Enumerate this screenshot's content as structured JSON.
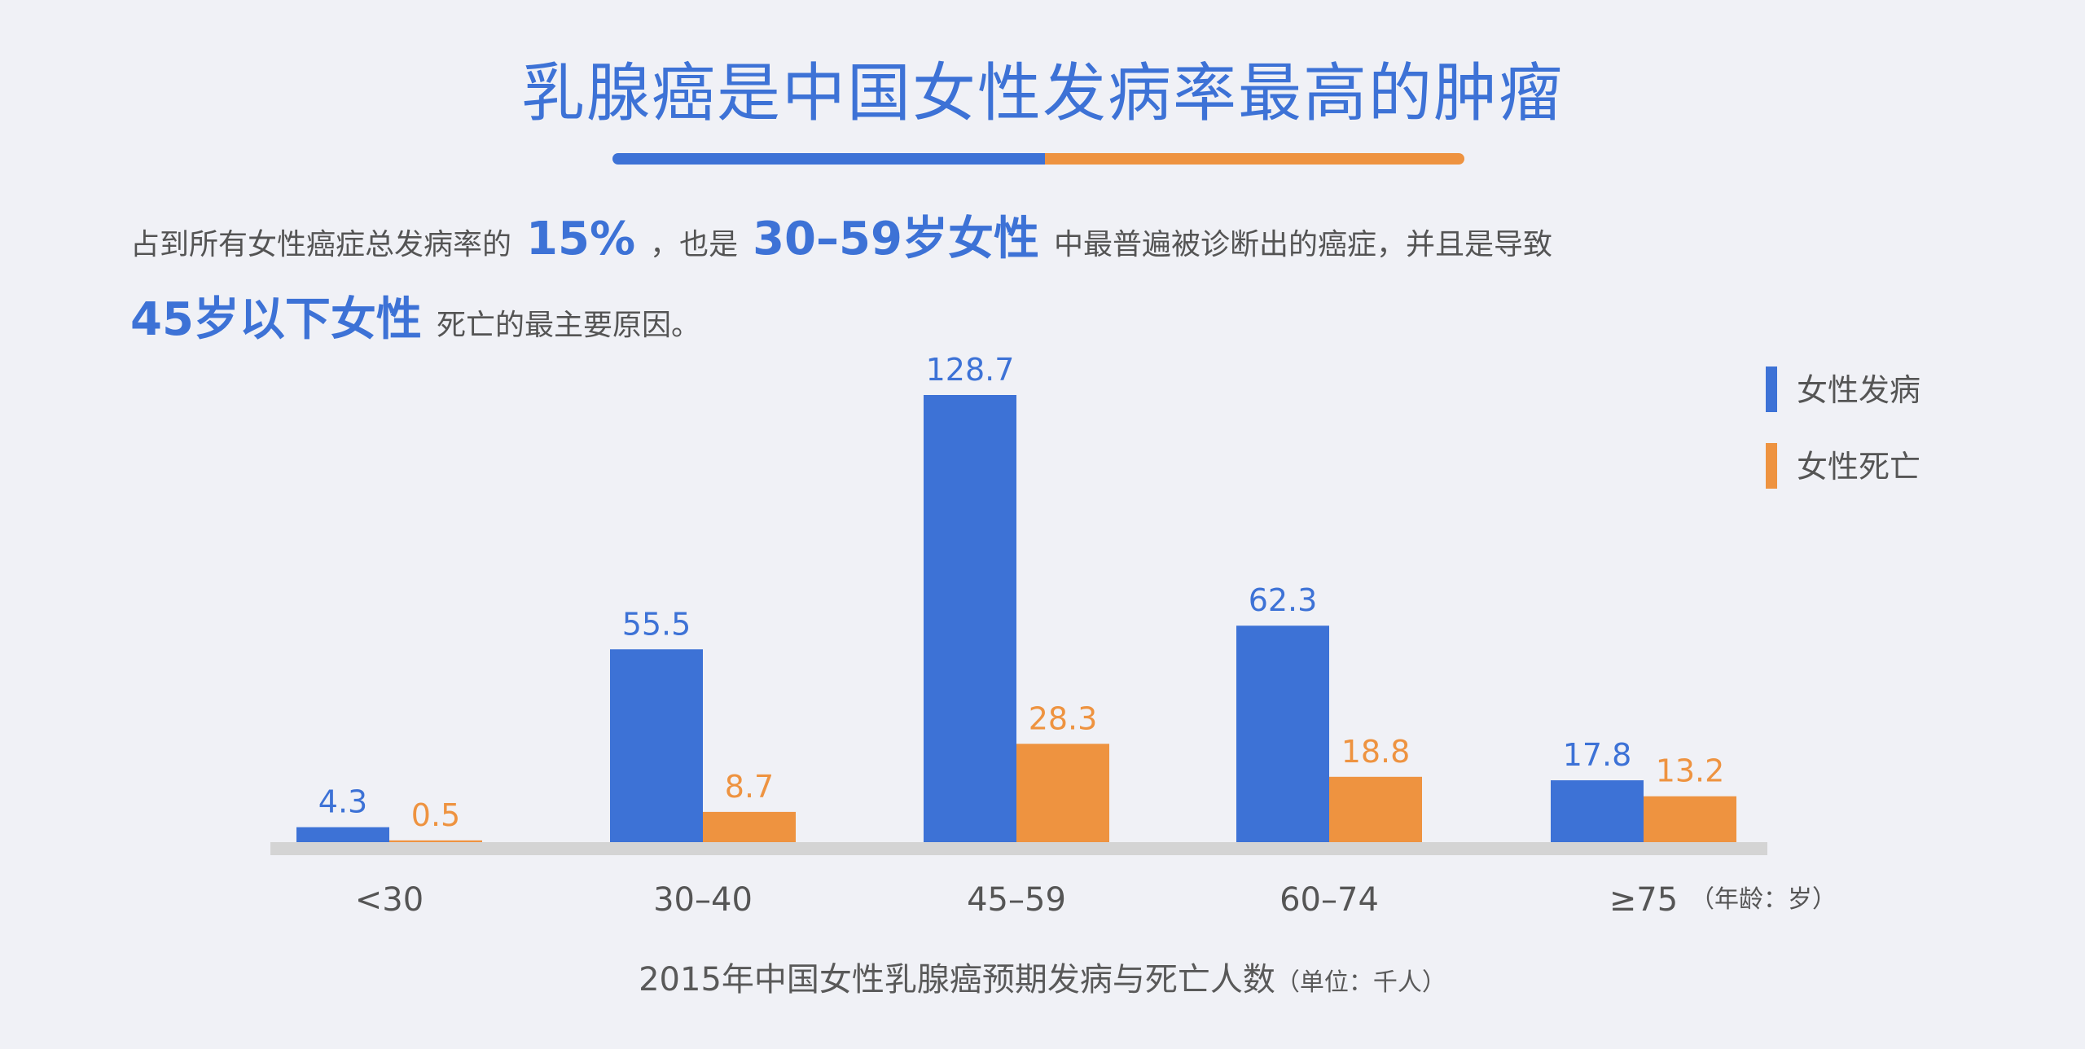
{
  "title": "乳腺癌是中国女性发病率最高的肿瘤",
  "description": {
    "text1": "占到所有女性癌症总发病率的",
    "hl1": "15%",
    "text2": "，也是",
    "hl2": "30–59岁女性",
    "text3": "中最普遍被诊断出的癌症，并且是导致",
    "hl3": "45岁以下女性",
    "text4": "死亡的最主要原因。"
  },
  "caption": {
    "main": "2015年中国女性乳腺癌预期发病与死亡人数",
    "unit": "（单位：千人）"
  },
  "colors": {
    "incidence": "#3d72d6",
    "death": "#ee9340",
    "baseline": "#d4d4d4",
    "tick_text": "#555555",
    "background": "#f0f1f6"
  },
  "chart_data": {
    "type": "bar",
    "categories": [
      "<30",
      "30–40",
      "45–59",
      "60–74",
      "≥75"
    ],
    "x_unit_label": "（年龄：岁）",
    "series": [
      {
        "name": "女性发病",
        "values": [
          4.3,
          55.5,
          128.7,
          62.3,
          17.8
        ]
      },
      {
        "name": "女性死亡",
        "values": [
          0.5,
          8.7,
          28.3,
          18.8,
          13.2
        ]
      }
    ],
    "ylim": [
      0,
      128.7
    ],
    "grid": false,
    "legend": "top-right"
  }
}
